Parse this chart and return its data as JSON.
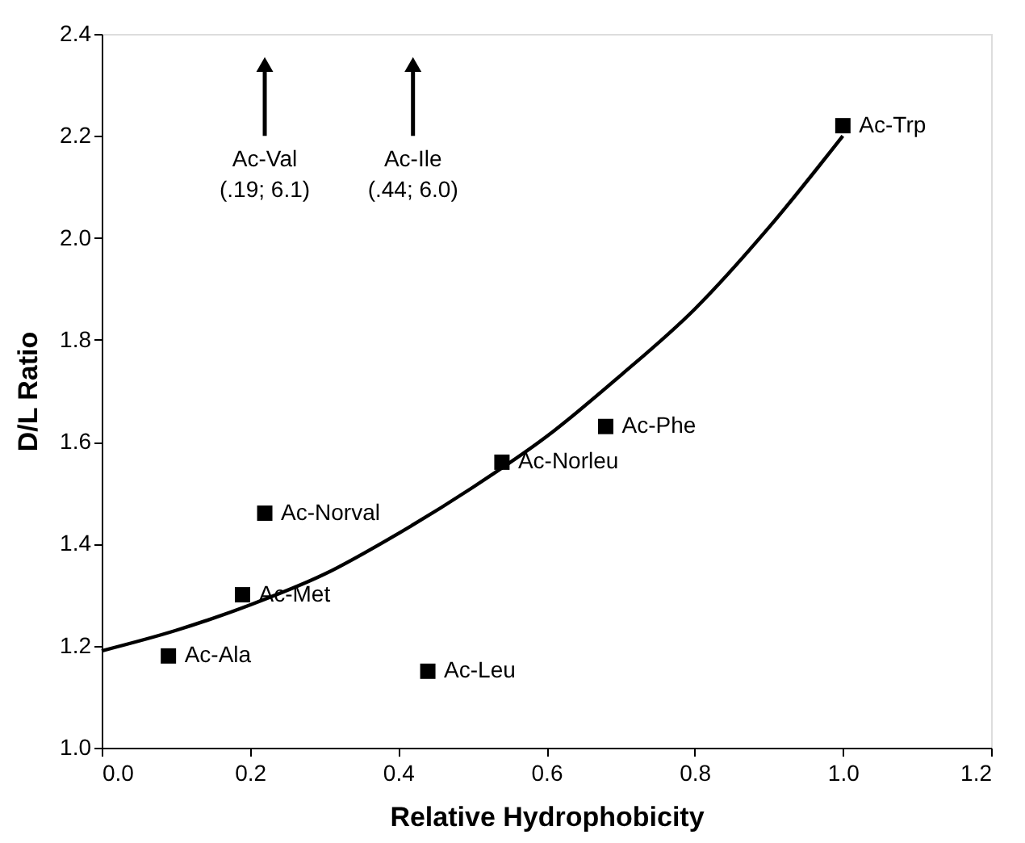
{
  "chart_data": {
    "type": "scatter",
    "xlabel": "Relative Hydrophobicity",
    "ylabel": "D/L Ratio",
    "xlim": [
      0.0,
      1.2
    ],
    "xticks": [
      {
        "value": 0,
        "label": "0.0"
      },
      0.2,
      0.4,
      0.6,
      0.8,
      {
        "value": 1,
        "label": "1.0"
      },
      1.2
    ],
    "ylim": [
      1.0,
      2.4
    ],
    "yticks": [
      {
        "value": 1,
        "label": "1.0"
      },
      1.2,
      1.4,
      1.6,
      1.8,
      {
        "value": 2,
        "label": "2.0"
      },
      2.2,
      2.4
    ],
    "grid": false,
    "marker": "square",
    "series": [
      {
        "name": "Ac-Ala",
        "color": "#000000",
        "x": [
          0.09
        ],
        "values": [
          1.18
        ]
      },
      {
        "name": "Ac-Met",
        "color": "#000000",
        "x": [
          0.19
        ],
        "values": [
          1.3
        ]
      },
      {
        "name": "Ac-Norval",
        "color": "#000000",
        "x": [
          0.22
        ],
        "values": [
          1.46
        ]
      },
      {
        "name": "Ac-Leu",
        "color": "#000000",
        "x": [
          0.44
        ],
        "values": [
          1.15
        ]
      },
      {
        "name": "Ac-Norleu",
        "color": "#000000",
        "x": [
          0.54
        ],
        "values": [
          1.56
        ]
      },
      {
        "name": "Ac-Phe",
        "color": "#000000",
        "x": [
          0.68
        ],
        "values": [
          1.63
        ]
      },
      {
        "name": "Ac-Trp",
        "color": "#000000",
        "x": [
          1.0
        ],
        "values": [
          2.22
        ]
      },
      {
        "type": "line",
        "color": "#000000",
        "line_style": "solid",
        "marker": "none",
        "x": [
          0,
          0.1,
          0.2,
          0.3,
          0.4,
          0.5,
          0.6,
          0.7,
          0.8,
          0.9,
          1.0
        ],
        "values": [
          1.19,
          1.23,
          1.28,
          1.34,
          1.42,
          1.51,
          1.61,
          1.73,
          1.86,
          2.02,
          2.2
        ]
      }
    ],
    "annotations": [
      {
        "text": "Ac-Val\n(.19; 6.1)",
        "x": 0.22,
        "y": 2.34
      },
      {
        "text": "Ac-Ile\n(.44; 6.0)",
        "x": 0.42,
        "y": 2.34
      }
    ]
  }
}
